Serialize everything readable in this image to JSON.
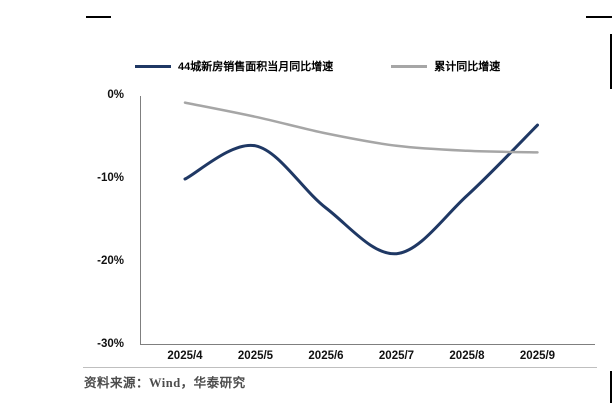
{
  "footer": {
    "source": "资料来源：Wind，华泰研究"
  },
  "colors": {
    "line_monthly": "#1f3864",
    "line_cumulative": "#a6a6a6",
    "axis": "#7f7f7f",
    "tick_text": "#111111",
    "footer_text": "#4d4d4d"
  },
  "chart_data": {
    "type": "line",
    "title": "",
    "categories": [
      "2025/4",
      "2025/5",
      "2025/6",
      "2025/7",
      "2025/8",
      "2025/9"
    ],
    "series": [
      {
        "name": "44城新房销售面积当月同比增速",
        "color": "#1f3864",
        "width": 3,
        "values": [
          -10,
          -6,
          -13.5,
          -19,
          -12,
          -3.5
        ]
      },
      {
        "name": "累计同比增速",
        "color": "#a6a6a6",
        "width": 2.5,
        "values": [
          -0.8,
          -2.5,
          -4.5,
          -6,
          -6.6,
          -6.8
        ]
      }
    ],
    "ylim": [
      -30,
      0
    ],
    "yticks": [
      "0%",
      "-10%",
      "-20%",
      "-30%"
    ],
    "ytick_values": [
      0,
      -10,
      -20,
      -30
    ],
    "xlabel": "",
    "ylabel": "",
    "grid": false,
    "legend_position": "top"
  }
}
